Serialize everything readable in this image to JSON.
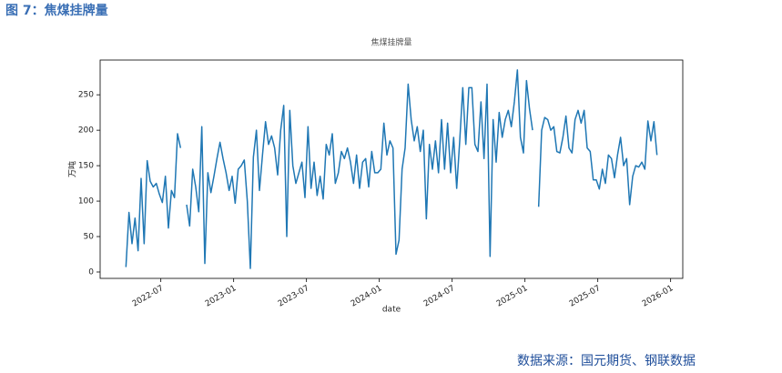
{
  "header": "图 7：焦煤挂牌量",
  "source": "数据来源：国元期货、钢联数据",
  "chart_data": {
    "type": "line",
    "title": "焦煤挂牌量",
    "xlabel": "date",
    "ylabel": "万吨",
    "color": "#1f77b4",
    "x": [
      "2022-04",
      "2022-04",
      "2022-04",
      "2022-04",
      "2022-05",
      "2022-05",
      "2022-05",
      "2022-05",
      "2022-06",
      "2022-06",
      "2022-06",
      "2022-06",
      "2022-07",
      "2022-07",
      "2022-07",
      "2022-07",
      "2022-08",
      "2022-08",
      "2022-08",
      "2022-08",
      "2022-09",
      "2022-09",
      "2022-09",
      "2022-09",
      "2022-10",
      "2022-10",
      "2022-10",
      "2022-10",
      "2022-11",
      "2022-11",
      "2022-11",
      "2022-11",
      "2022-12",
      "2022-12",
      "2022-12",
      "2022-12",
      "2023-01",
      "2023-01",
      "2023-01",
      "2023-01",
      "2023-02",
      "2023-02",
      "2023-02",
      "2023-02",
      "2023-03",
      "2023-03",
      "2023-03",
      "2023-03",
      "2023-04",
      "2023-04",
      "2023-04",
      "2023-04",
      "2023-05",
      "2023-05",
      "2023-05",
      "2023-05",
      "2023-06",
      "2023-06",
      "2023-06",
      "2023-06",
      "2023-07",
      "2023-07",
      "2023-07",
      "2023-07",
      "2023-08",
      "2023-08",
      "2023-08",
      "2023-08",
      "2023-09",
      "2023-09",
      "2023-09",
      "2023-09",
      "2023-10",
      "2023-10",
      "2023-10",
      "2023-10",
      "2023-11",
      "2023-11",
      "2023-11",
      "2023-11",
      "2023-12",
      "2023-12",
      "2023-12",
      "2023-12",
      "2024-01",
      "2024-01",
      "2024-01",
      "2024-01",
      "2024-02",
      "2024-02",
      "2024-02",
      "2024-02",
      "2024-03",
      "2024-03",
      "2024-03",
      "2024-03",
      "2024-04",
      "2024-04",
      "2024-04",
      "2024-04",
      "2024-05",
      "2024-05",
      "2024-05",
      "2024-05",
      "2024-06",
      "2024-06",
      "2024-06",
      "2024-06",
      "2024-07",
      "2024-07",
      "2024-07",
      "2024-07",
      "2024-08",
      "2024-08",
      "2024-08",
      "2024-08",
      "2024-09",
      "2024-09",
      "2024-09",
      "2024-09",
      "2024-10",
      "2024-10",
      "2024-10",
      "2024-10",
      "2024-11",
      "2024-11",
      "2024-11",
      "2024-11",
      "2024-12",
      "2024-12",
      "2024-12",
      "2024-12",
      "2025-01",
      "2025-01",
      "2025-01",
      "2025-01",
      "2025-02",
      "2025-02",
      "2025-02",
      "2025-02",
      "2025-03",
      "2025-03",
      "2025-03",
      "2025-03",
      "2025-04",
      "2025-04",
      "2025-04",
      "2025-04",
      "2025-05",
      "2025-05",
      "2025-05",
      "2025-05",
      "2025-06",
      "2025-06",
      "2025-06",
      "2025-06",
      "2025-07",
      "2025-07",
      "2025-07",
      "2025-07",
      "2025-08",
      "2025-08",
      "2025-08",
      "2025-08",
      "2025-09",
      "2025-09",
      "2025-09",
      "2025-09",
      "2025-10",
      "2025-10",
      "2025-10",
      "2025-10",
      "2025-11",
      "2025-11",
      "2025-11",
      "2025-11"
    ],
    "values": [
      7,
      84,
      40,
      76,
      30,
      132,
      40,
      157,
      128,
      120,
      125,
      110,
      98,
      135,
      62,
      115,
      105,
      195,
      175,
      null,
      95,
      65,
      145,
      120,
      85,
      205,
      12,
      140,
      112,
      135,
      160,
      183,
      160,
      140,
      115,
      135,
      97,
      145,
      150,
      158,
      100,
      5,
      162,
      200,
      115,
      165,
      212,
      180,
      192,
      175,
      137,
      200,
      235,
      50,
      228,
      150,
      125,
      140,
      155,
      105,
      205,
      118,
      155,
      108,
      135,
      103,
      180,
      165,
      195,
      125,
      140,
      170,
      160,
      175,
      155,
      125,
      165,
      118,
      155,
      160,
      120,
      170,
      140,
      140,
      145,
      210,
      165,
      185,
      175,
      25,
      45,
      145,
      175,
      265,
      215,
      185,
      205,
      170,
      200,
      75,
      180,
      145,
      185,
      140,
      215,
      145,
      210,
      140,
      190,
      118,
      185,
      260,
      180,
      260,
      260,
      180,
      170,
      240,
      160,
      265,
      22,
      215,
      155,
      225,
      190,
      215,
      228,
      205,
      240,
      285,
      190,
      168,
      270,
      230,
      200,
      null,
      92,
      200,
      218,
      215,
      200,
      205,
      170,
      168,
      190,
      220,
      175,
      168,
      215,
      228,
      210,
      228,
      175,
      170,
      130,
      130,
      117,
      145,
      125,
      165,
      160,
      133,
      165,
      190,
      150,
      160,
      95,
      135,
      150,
      148,
      155,
      145,
      213,
      185,
      212,
      165
    ],
    "xlim": [
      "2022-02",
      "2026-02"
    ],
    "xticks": [
      "2022-07",
      "2023-01",
      "2023-07",
      "2024-01",
      "2024-07",
      "2025-01",
      "2025-07",
      "2026-01"
    ],
    "ylim": [
      -9,
      299
    ],
    "yticks": [
      0,
      50,
      100,
      150,
      200,
      250
    ]
  }
}
